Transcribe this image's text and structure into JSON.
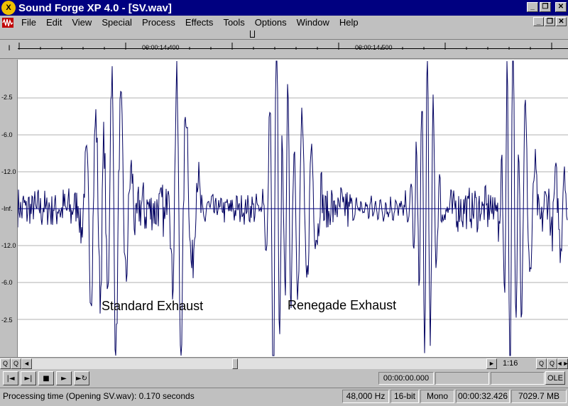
{
  "window": {
    "title": "Sound Forge XP 4.0 - [SV.wav]",
    "logo_letter": "X",
    "minimize_label": "_",
    "restore_label": "❐",
    "close_label": "✕"
  },
  "menu": {
    "items": [
      "File",
      "Edit",
      "View",
      "Special",
      "Process",
      "Effects",
      "Tools",
      "Options",
      "Window",
      "Help"
    ]
  },
  "ruler": {
    "cursor_glyph": "I",
    "time_labels": [
      "00:00:14.400",
      "00:00:14.500"
    ]
  },
  "level_axis": {
    "labels": [
      "-2.5",
      "-6.0",
      "-12.0",
      "-Inf.",
      "-12.0",
      "-6.0",
      "-2.5"
    ]
  },
  "annotations": {
    "left": "Standard Exhaust",
    "right": "Renegade Exhaust"
  },
  "scroll": {
    "zoom_in_glyph": "Q",
    "zoom_out_glyph": "Q",
    "left_glyph": "◄",
    "right_glyph": "►",
    "zoom_ratio": "1:16",
    "end_zoom_glyph": "Q",
    "end_zoom2_glyph": "Q",
    "end_arrows_glyph": "◄►"
  },
  "transport": {
    "btn_prev": "|◄",
    "btn_next": "►|",
    "btn_stop": "■",
    "btn_play": "►",
    "btn_loop": "►↻",
    "selection_start": "00:00:00.000",
    "ole_label": "OLE"
  },
  "status": {
    "message": "Processing time (Opening SV.wav): 0.170 seconds",
    "sample_rate": "48,000 Hz",
    "bit_depth": "16-bit",
    "channels": "Mono",
    "length": "00:00:32.426",
    "free_space": "7029.7 MB"
  },
  "colors": {
    "title_bar": "#000080",
    "waveform": "#000060",
    "wave_background": "#ffffff"
  }
}
